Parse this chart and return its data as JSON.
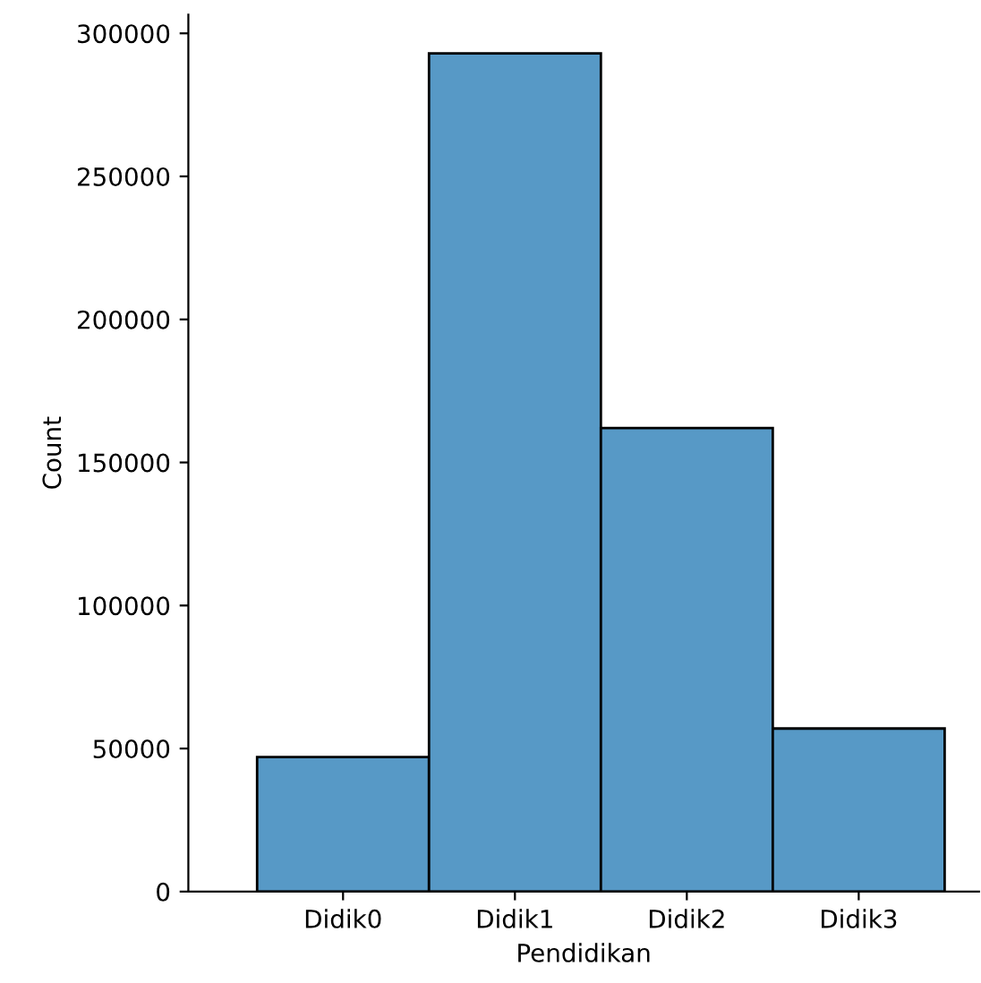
{
  "chart_data": {
    "type": "bar",
    "xlabel": "Pendidikan",
    "ylabel": "Count",
    "categories": [
      "Didik0",
      "Didik1",
      "Didik2",
      "Didik3"
    ],
    "values": [
      47000,
      293000,
      162000,
      57000
    ],
    "color": "#5799c6",
    "ylim": [
      0,
      306500
    ],
    "yticks": [
      0,
      50000,
      100000,
      150000,
      200000,
      250000,
      300000
    ],
    "grid": false
  }
}
